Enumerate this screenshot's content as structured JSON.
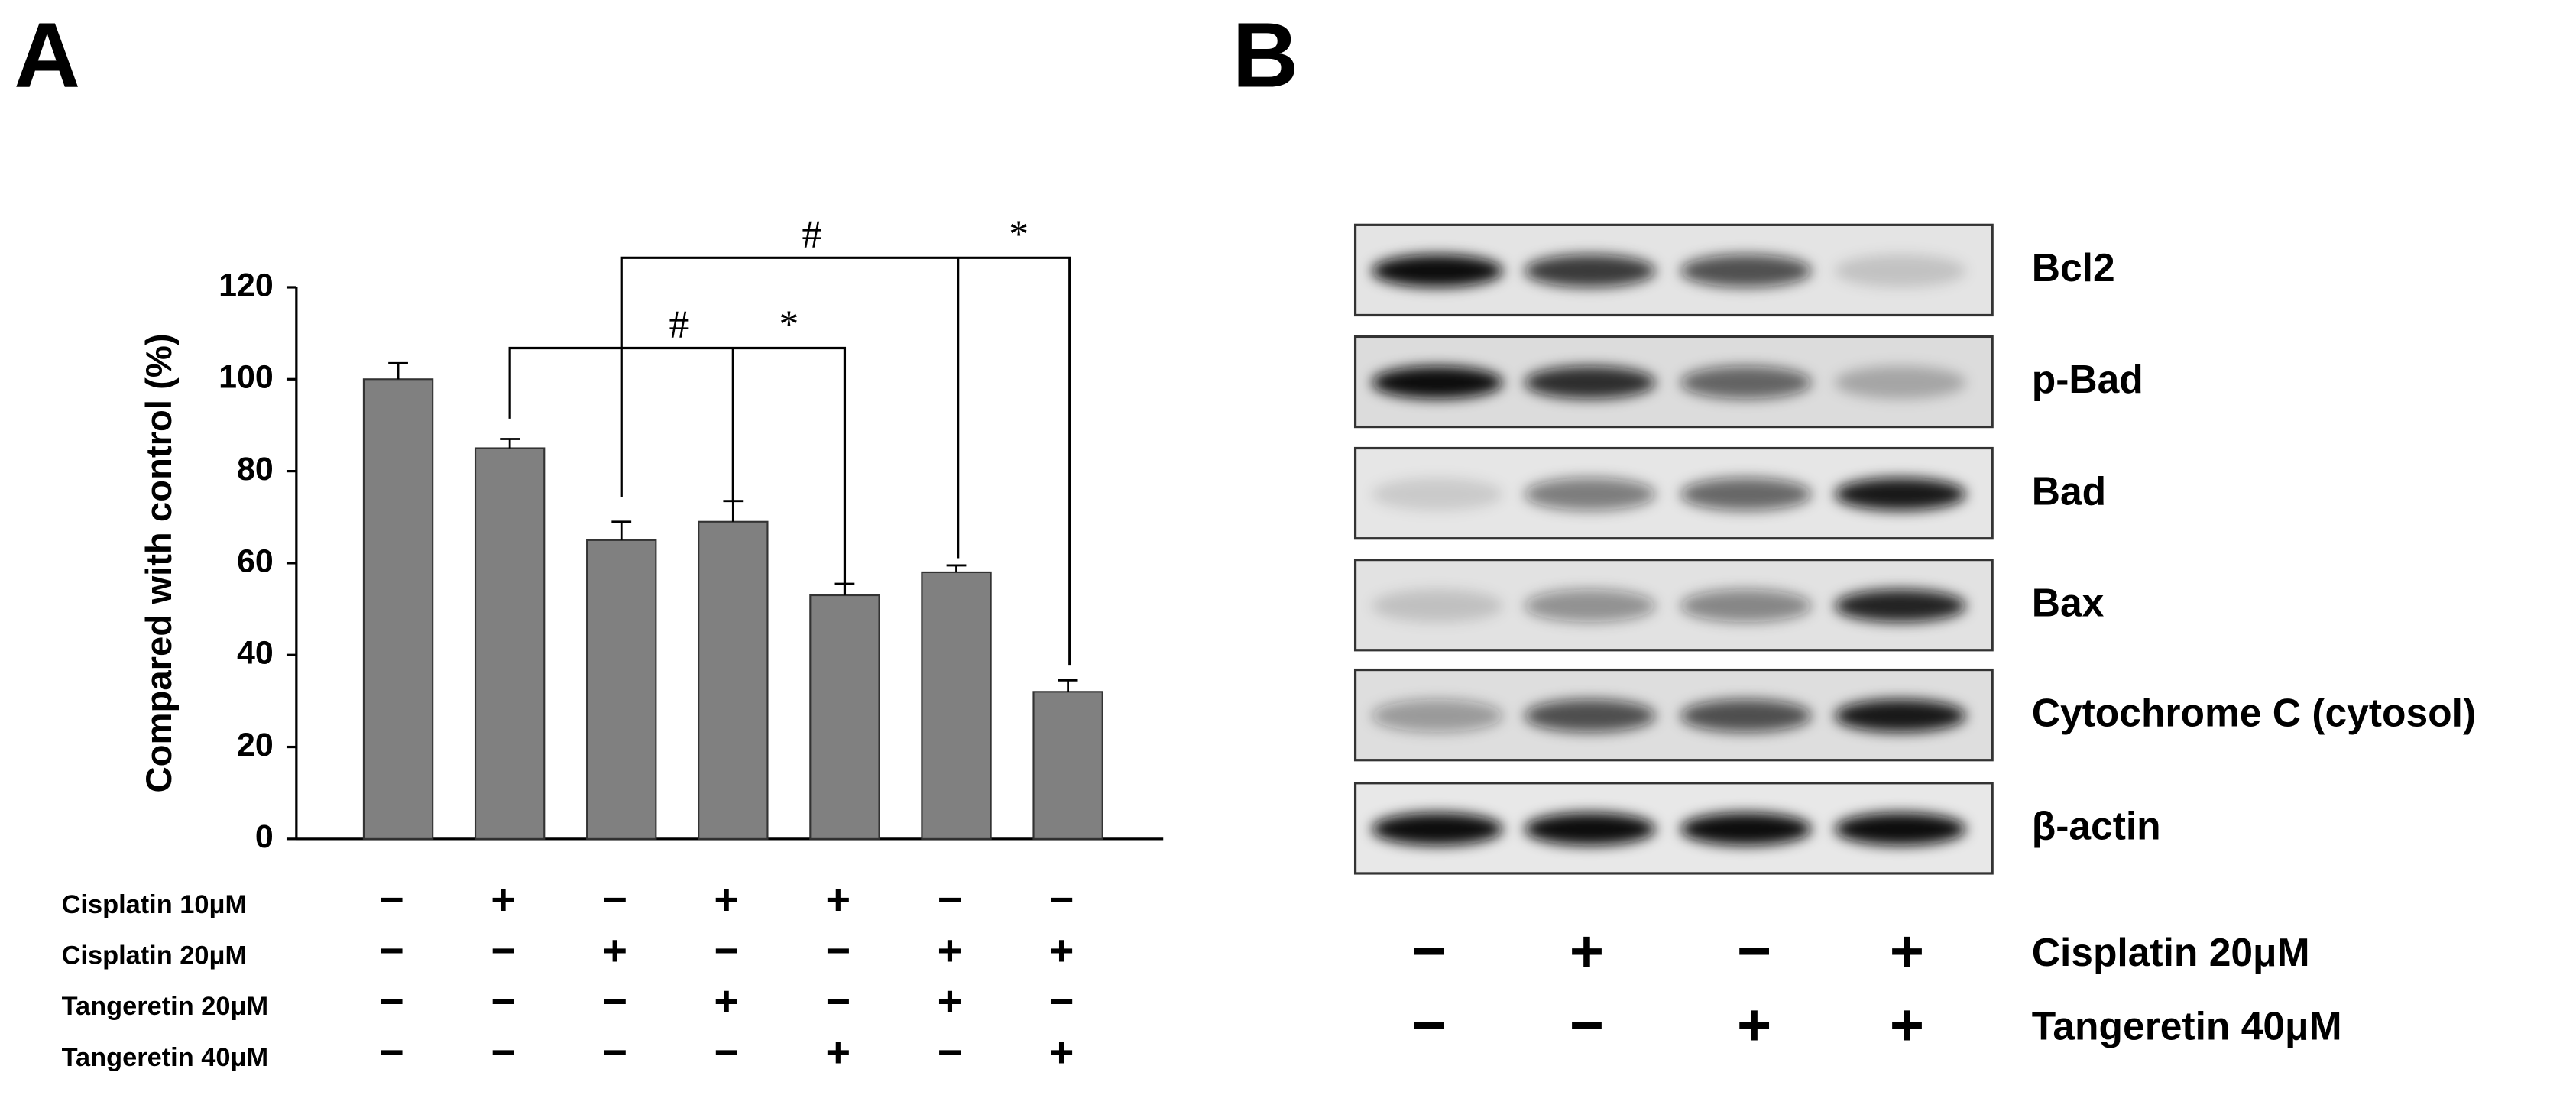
{
  "chart_data": {
    "type": "bar",
    "panel_label": "A",
    "y_label": "Compared with control (%)",
    "categories": [
      null,
      null,
      null,
      null,
      null,
      null,
      null
    ],
    "values": [
      100,
      85,
      65,
      69,
      53,
      58,
      32
    ],
    "errors": [
      3.5,
      2,
      4,
      4.5,
      2.5,
      1.5,
      2.5
    ],
    "color": "#808080",
    "ylim": [
      0,
      120
    ],
    "yticks": [
      0,
      20,
      40,
      60,
      80,
      100,
      120
    ],
    "annotations": [
      "#",
      "*",
      "#",
      "*"
    ],
    "treatments": [
      {
        "name": "Cisplatin 10μM",
        "signs": [
          "−",
          "+",
          "−",
          "+",
          "+",
          "−",
          "−"
        ]
      },
      {
        "name": "Cisplatin 20μM",
        "signs": [
          "−",
          "−",
          "+",
          "−",
          "−",
          "+",
          "+"
        ]
      },
      {
        "name": "Tangeretin 20μM",
        "signs": [
          "−",
          "−",
          "−",
          "+",
          "−",
          "+",
          "−"
        ]
      },
      {
        "name": "Tangeretin 40μM",
        "signs": [
          "−",
          "−",
          "−",
          "−",
          "+",
          "−",
          "+"
        ]
      }
    ]
  },
  "panel_b": {
    "panel_label": "B",
    "blots": [
      "Bcl2",
      "p-Bad",
      "Bad",
      "Bax",
      "Cytochrome C (cytosol)",
      "β-actin"
    ],
    "treatments": [
      {
        "name": "Cisplatin 20μM",
        "signs": [
          "−",
          "+",
          "−",
          "+"
        ]
      },
      {
        "name": "Tangeretin 40μM",
        "signs": [
          "−",
          "−",
          "+",
          "+"
        ]
      }
    ]
  }
}
